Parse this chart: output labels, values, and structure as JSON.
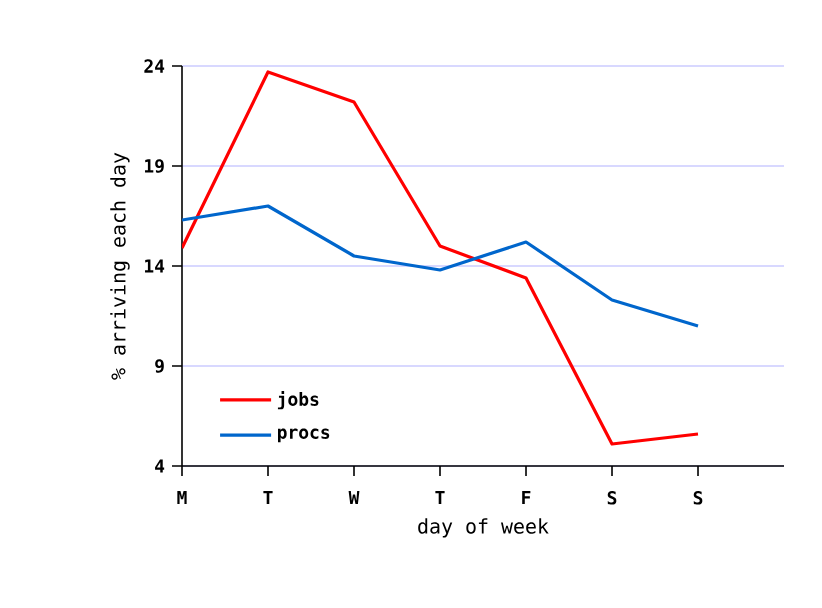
{
  "chart_data": {
    "type": "line",
    "xlabel": "day of week",
    "ylabel": "% arriving each day",
    "categories": [
      "M",
      "T",
      "W",
      "T",
      "F",
      "S",
      "S"
    ],
    "series": [
      {
        "name": "jobs",
        "color": "#ff0000",
        "values": [
          14.9,
          23.7,
          22.2,
          15.0,
          13.4,
          5.1,
          5.6
        ]
      },
      {
        "name": "procs",
        "color": "#0066cc",
        "values": [
          16.3,
          17.0,
          14.5,
          13.8,
          15.2,
          12.3,
          11.0
        ]
      }
    ],
    "ylim": [
      4,
      24
    ],
    "yticks": [
      4,
      9,
      14,
      19,
      24
    ],
    "grid": "y",
    "legend": "bottom left",
    "marker": "none",
    "line_style": "solid"
  }
}
